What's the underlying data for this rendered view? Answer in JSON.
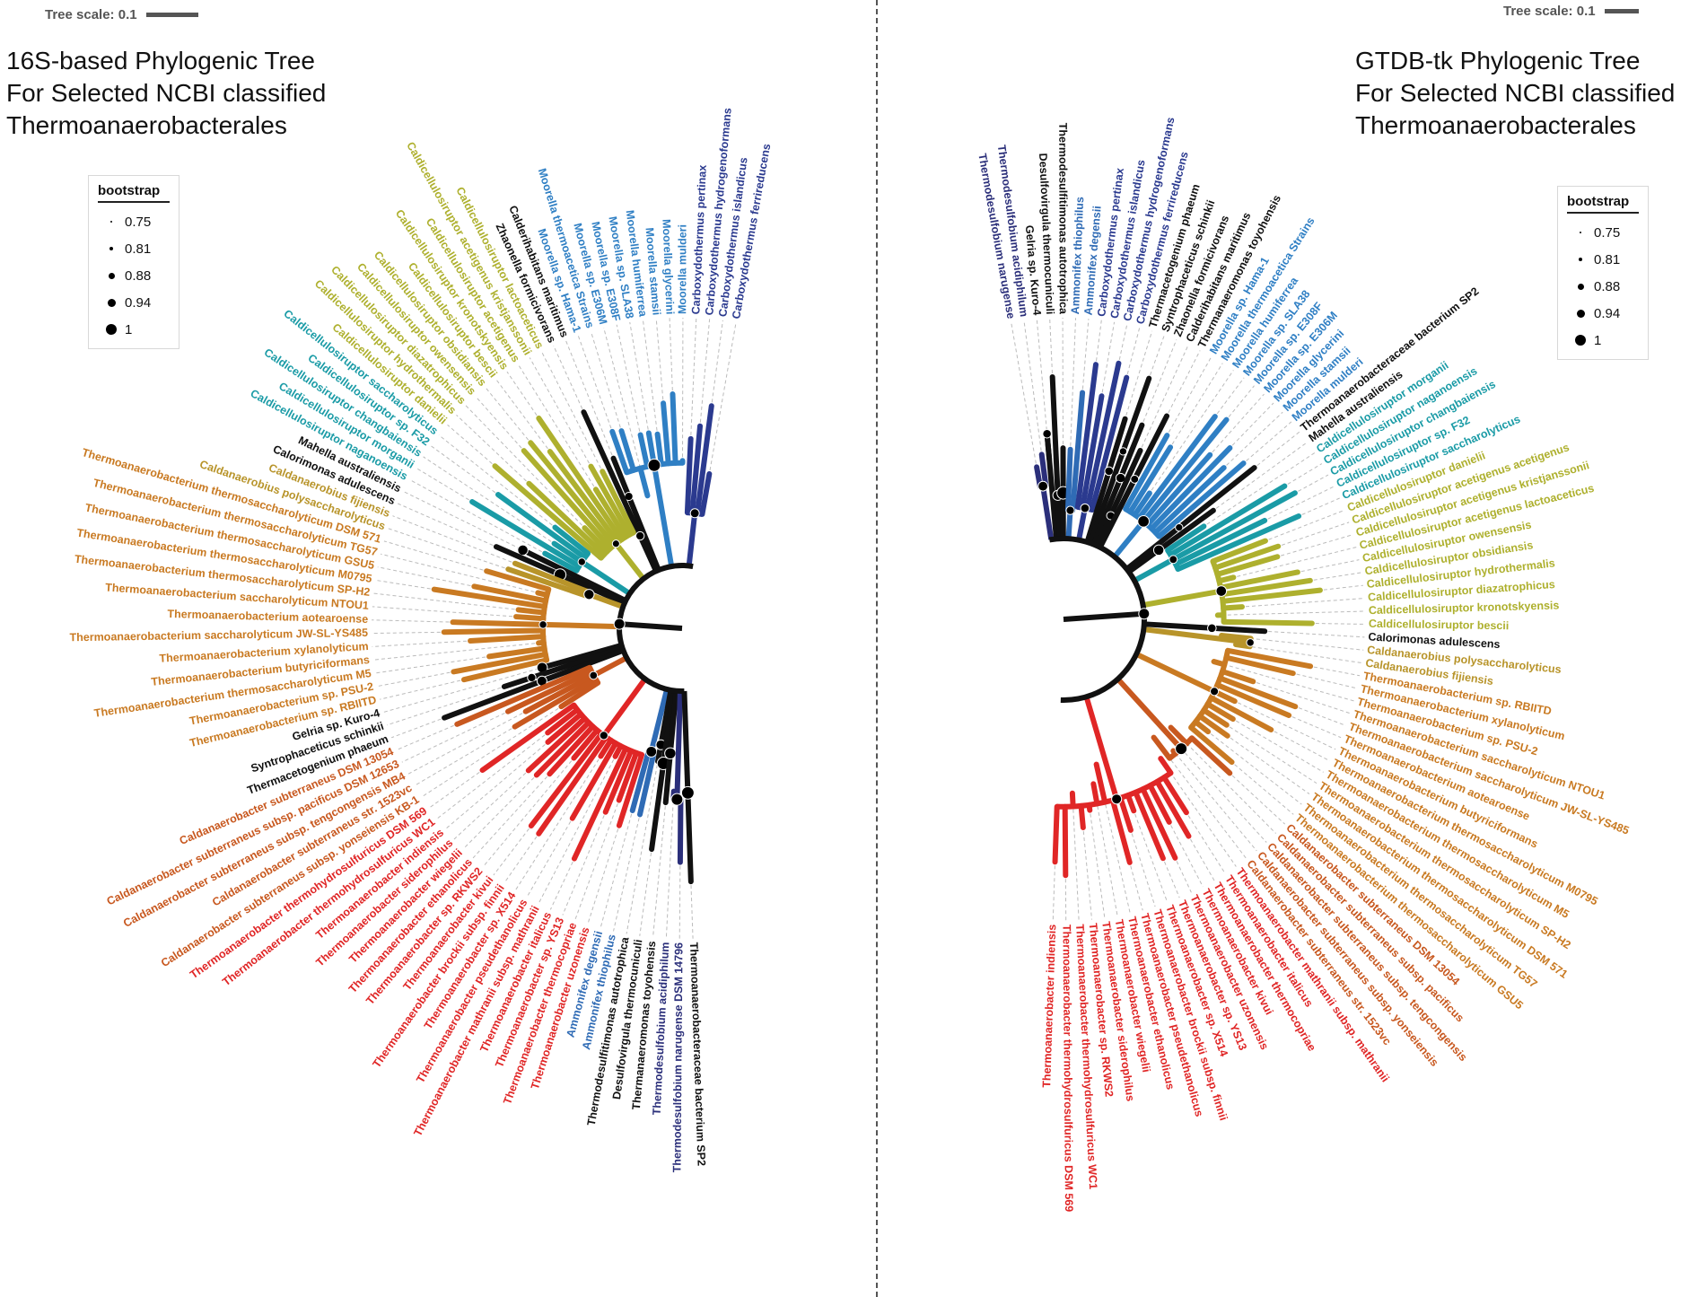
{
  "left": {
    "title_lines": [
      "16S-based Phylogenic Tree",
      "For Selected NCBI classified",
      "Thermoanaerobacterales"
    ],
    "tree_scale_label": "Tree scale: 0.1",
    "legend": {
      "title": "bootstrap",
      "values": [
        "0.75",
        "0.81",
        "0.88",
        "0.94",
        "1"
      ]
    },
    "leaves": [
      {
        "name": "Carboxydothermus ferrireducens",
        "color": "#2b3a8f"
      },
      {
        "name": "Carboxydothermus islandicus",
        "color": "#2b3a8f"
      },
      {
        "name": "Carboxydothermus hydrogenoformans",
        "color": "#2b3a8f"
      },
      {
        "name": "Carboxydothermus pertinax",
        "color": "#2b3a8f"
      },
      {
        "name": "Moorella mulderi",
        "color": "#2f7fc4"
      },
      {
        "name": "Moorella glycerini",
        "color": "#2f7fc4"
      },
      {
        "name": "Moorella stamsii",
        "color": "#2f7fc4"
      },
      {
        "name": "Moorella humiferrea",
        "color": "#2f7fc4"
      },
      {
        "name": "Moorella sp. SLA38",
        "color": "#2f7fc4"
      },
      {
        "name": "Moorella sp. E308F",
        "color": "#2f7fc4"
      },
      {
        "name": "Moorella sp. E306M",
        "color": "#2f7fc4"
      },
      {
        "name": "Moorella thermoacetica Strains",
        "color": "#2f7fc4"
      },
      {
        "name": "Moorella sp. Hama-1",
        "color": "#2f7fc4"
      },
      {
        "name": "Calderihabitans maritimus",
        "color": "#111111"
      },
      {
        "name": "Zhaonella formicivorans",
        "color": "#111111"
      },
      {
        "name": "Caldicellulosiruptor lactoaceticus",
        "color": "#aeb02e"
      },
      {
        "name": "Caldicellulosiruptor acetigenus kristjanssonii",
        "color": "#aeb02e"
      },
      {
        "name": "Caldicellulosiruptor acetigenus",
        "color": "#aeb02e"
      },
      {
        "name": "Caldicellulosiruptor kronotskyensis",
        "color": "#aeb02e"
      },
      {
        "name": "Caldicellulosiruptor bescii",
        "color": "#aeb02e"
      },
      {
        "name": "Caldicellulosiruptor obsidiansis",
        "color": "#aeb02e"
      },
      {
        "name": "Caldicellulosiruptor owensensis",
        "color": "#aeb02e"
      },
      {
        "name": "Caldicellulosiruptor diazatrophicus",
        "color": "#aeb02e"
      },
      {
        "name": "Caldicellulosiruptor hydrothermalis",
        "color": "#aeb02e"
      },
      {
        "name": "Caldicellulosiruptor danielii",
        "color": "#aeb02e"
      },
      {
        "name": "Caldicellulosiruptor saccharolyticus",
        "color": "#1a9ba6"
      },
      {
        "name": "Caldicellulosiruptor sp. F32",
        "color": "#1a9ba6"
      },
      {
        "name": "Caldicellulosiruptor changbaiensis",
        "color": "#1a9ba6"
      },
      {
        "name": "Caldicellulosiruptor morganii",
        "color": "#1a9ba6"
      },
      {
        "name": "Caldicellulosiruptor naganoensis",
        "color": "#1a9ba6"
      },
      {
        "name": "Mahella australiensis",
        "color": "#111111"
      },
      {
        "name": "Calorimonas adulescens",
        "color": "#111111"
      },
      {
        "name": "Caldanaerobius fijiensis",
        "color": "#b8942a"
      },
      {
        "name": "Caldanaerobius polysaccharolyticus",
        "color": "#b8942a"
      },
      {
        "name": "Thermoanaerobacterium thermosaccharolyticum DSM 571",
        "color": "#c97a22"
      },
      {
        "name": "Thermoanaerobacterium thermosaccharolyticum TG57",
        "color": "#c97a22"
      },
      {
        "name": "Thermoanaerobacterium thermosaccharolyticum GSU5",
        "color": "#c97a22"
      },
      {
        "name": "Thermoanaerobacterium thermosaccharolyticum M0795",
        "color": "#c97a22"
      },
      {
        "name": "Thermoanaerobacterium thermosaccharolyticum SP-H2",
        "color": "#c97a22"
      },
      {
        "name": "Thermoanaerobacterium saccharolyticum NTOU1",
        "color": "#c97a22"
      },
      {
        "name": "Thermoanaerobacterium aotearoense",
        "color": "#c97a22"
      },
      {
        "name": "Thermoanaerobacterium saccharolyticum JW-SL-YS485",
        "color": "#c97a22"
      },
      {
        "name": "Thermoanaerobacterium xylanolyticum",
        "color": "#c97a22"
      },
      {
        "name": "Thermoanaerobacterium butyriciformans",
        "color": "#c97a22"
      },
      {
        "name": "Thermoanaerobacterium thermosaccharolyticum M5",
        "color": "#c97a22"
      },
      {
        "name": "Thermoanaerobacterium sp. PSU-2",
        "color": "#c97a22"
      },
      {
        "name": "Thermoanaerobacterium sp. RBIITD",
        "color": "#c97a22"
      },
      {
        "name": "Gelria sp. Kuro-4",
        "color": "#111111"
      },
      {
        "name": "Syntrophaceticus schinkii",
        "color": "#111111"
      },
      {
        "name": "Thermacetogenium phaeum",
        "color": "#111111"
      },
      {
        "name": "Caldanaerobacter subterraneus DSM 13054",
        "color": "#c8581f"
      },
      {
        "name": "Caldanaerobacter subterraneus subsp. pacificus DSM 12653",
        "color": "#c8581f"
      },
      {
        "name": "Caldanaerobacter subterraneus subsp. tengcongensis MB4",
        "color": "#c8581f"
      },
      {
        "name": "Caldanaerobacter subterraneus str. 1523vc",
        "color": "#c8581f"
      },
      {
        "name": "Caldanaerobacter subterraneus subsp. yonseiensis KB-1",
        "color": "#c8581f"
      },
      {
        "name": "Thermoanaerobacter thermohydrosulfuricus DSM 569",
        "color": "#e02626"
      },
      {
        "name": "Thermoanaerobacter thermohydrosulfuricus WC1",
        "color": "#e02626"
      },
      {
        "name": "Thermoanaerobacter indiensis",
        "color": "#e02626"
      },
      {
        "name": "Thermoanaerobacter siderophilus",
        "color": "#e02626"
      },
      {
        "name": "Thermoanaerobacter wiegelii",
        "color": "#e02626"
      },
      {
        "name": "Thermoanaerobacter ethanolicus",
        "color": "#e02626"
      },
      {
        "name": "Thermoanaerobacter sp. RKWS2",
        "color": "#e02626"
      },
      {
        "name": "Thermoanaerobacter kivui",
        "color": "#e02626"
      },
      {
        "name": "Thermoanaerobacter brockii subsp. finnii",
        "color": "#e02626"
      },
      {
        "name": "Thermoanaerobacter sp. X514",
        "color": "#e02626"
      },
      {
        "name": "Thermoanaerobacter pseudethanolicus",
        "color": "#e02626"
      },
      {
        "name": "Thermoanaerobacter mathranii subsp. mathranii",
        "color": "#e02626"
      },
      {
        "name": "Thermoanaerobacter italicus",
        "color": "#e02626"
      },
      {
        "name": "Thermoanaerobacter sp. YS13",
        "color": "#e02626"
      },
      {
        "name": "Thermoanaerobacter thermocopriae",
        "color": "#e02626"
      },
      {
        "name": "Thermoanaerobacter uzonensis",
        "color": "#e02626"
      },
      {
        "name": "Ammonifex degensii",
        "color": "#2f6bb5"
      },
      {
        "name": "Ammonifex thiophilus",
        "color": "#2f6bb5"
      },
      {
        "name": "Thermodesulfitimonas autotrophica",
        "color": "#111111"
      },
      {
        "name": "Desulfovirgula thermocuniculi",
        "color": "#111111"
      },
      {
        "name": "Thermanaeromonas toyohensis",
        "color": "#111111"
      },
      {
        "name": "Thermodesulfobium acidiphilum",
        "color": "#2b2f7a"
      },
      {
        "name": "Thermodesulfobium narugense DSM 14796",
        "color": "#2b2f7a"
      },
      {
        "name": "Thermoanaerobacteraceae bacterium SP2",
        "color": "#111111"
      }
    ]
  },
  "right": {
    "title_lines": [
      "GTDB-tk Phylogenic Tree",
      "For Selected NCBI classified",
      "Thermoanaerobacterales"
    ],
    "tree_scale_label": "Tree scale: 0.1",
    "legend": {
      "title": "bootstrap",
      "values": [
        "0.75",
        "0.81",
        "0.88",
        "0.94",
        "1"
      ]
    },
    "leaves": [
      {
        "name": "Thermodesulfobium narugense",
        "color": "#2b2f7a"
      },
      {
        "name": "Thermodesulfobium acidiphilum",
        "color": "#2b2f7a"
      },
      {
        "name": "Gelria sp. Kuro-4",
        "color": "#111111"
      },
      {
        "name": "Desulfovirgula thermocuniculi",
        "color": "#111111"
      },
      {
        "name": "Thermodesulfitimonas autotrophica",
        "color": "#111111"
      },
      {
        "name": "Ammonifex thiophilus",
        "color": "#2f6bb5"
      },
      {
        "name": "Ammonifex degensii",
        "color": "#2f6bb5"
      },
      {
        "name": "Carboxydothermus pertinax",
        "color": "#2b3a8f"
      },
      {
        "name": "Carboxydothermus islandicus",
        "color": "#2b3a8f"
      },
      {
        "name": "Carboxydothermus hydrogenoformans",
        "color": "#2b3a8f"
      },
      {
        "name": "Carboxydothermus ferrireducens",
        "color": "#2b3a8f"
      },
      {
        "name": "Thermacetogenium phaeum",
        "color": "#111111"
      },
      {
        "name": "Syntrophaceticus schinkii",
        "color": "#111111"
      },
      {
        "name": "Zhaonella formicivorans",
        "color": "#111111"
      },
      {
        "name": "Calderihabitans maritimus",
        "color": "#111111"
      },
      {
        "name": "Thermanaeromonas toyohensis",
        "color": "#111111"
      },
      {
        "name": "Moorella sp. Hama-1",
        "color": "#2f7fc4"
      },
      {
        "name": "Moorella thermoacetica Strains",
        "color": "#2f7fc4"
      },
      {
        "name": "Moorella humiferrea",
        "color": "#2f7fc4"
      },
      {
        "name": "Moorella sp. SLA38",
        "color": "#2f7fc4"
      },
      {
        "name": "Moorella sp. E308F",
        "color": "#2f7fc4"
      },
      {
        "name": "Moorella sp. E306M",
        "color": "#2f7fc4"
      },
      {
        "name": "Moorella glycerini",
        "color": "#2f7fc4"
      },
      {
        "name": "Moorella stamsii",
        "color": "#2f7fc4"
      },
      {
        "name": "Moorella mulderi",
        "color": "#2f7fc4"
      },
      {
        "name": "Thermoanaerobacteraceae bacterium SP2",
        "color": "#111111"
      },
      {
        "name": "Mahella australiensis",
        "color": "#111111"
      },
      {
        "name": "Caldicellulosiruptor morganii",
        "color": "#1a9ba6"
      },
      {
        "name": "Caldicellulosiruptor naganoensis",
        "color": "#1a9ba6"
      },
      {
        "name": "Caldicellulosiruptor changbaiensis",
        "color": "#1a9ba6"
      },
      {
        "name": "Caldicellulosiruptor sp. F32",
        "color": "#1a9ba6"
      },
      {
        "name": "Caldicellulosiruptor saccharolyticus",
        "color": "#1a9ba6"
      },
      {
        "name": "Caldicellulosiruptor danielii",
        "color": "#aeb02e"
      },
      {
        "name": "Caldicellulosiruptor acetigenus acetigenus",
        "color": "#aeb02e"
      },
      {
        "name": "Caldicellulosiruptor acetigenus kristjanssonii",
        "color": "#aeb02e"
      },
      {
        "name": "Caldicellulosiruptor acetigenus lactoaceticus",
        "color": "#aeb02e"
      },
      {
        "name": "Caldicellulosiruptor owensensis",
        "color": "#aeb02e"
      },
      {
        "name": "Caldicellulosiruptor obsidiansis",
        "color": "#aeb02e"
      },
      {
        "name": "Caldicellulosiruptor hydrothermalis",
        "color": "#aeb02e"
      },
      {
        "name": "Caldicellulosiruptor diazatrophicus",
        "color": "#aeb02e"
      },
      {
        "name": "Caldicellulosiruptor kronotskyensis",
        "color": "#aeb02e"
      },
      {
        "name": "Caldicellulosiruptor bescii",
        "color": "#aeb02e"
      },
      {
        "name": "Calorimonas adulescens",
        "color": "#111111"
      },
      {
        "name": "Caldanaerobius polysaccharolyticus",
        "color": "#b8942a"
      },
      {
        "name": "Caldanaerobius fijiensis",
        "color": "#b8942a"
      },
      {
        "name": "Thermoanaerobacterium sp. RBIITD",
        "color": "#c97a22"
      },
      {
        "name": "Thermoanaerobacterium xylanolyticum",
        "color": "#c97a22"
      },
      {
        "name": "Thermoanaerobacterium sp. PSU-2",
        "color": "#c97a22"
      },
      {
        "name": "Thermoanaerobacterium saccharolyticum NTOU1",
        "color": "#c97a22"
      },
      {
        "name": "Thermoanaerobacterium saccharolyticum JW-SL-YS485",
        "color": "#c97a22"
      },
      {
        "name": "Thermoanaerobacterium aotearoense",
        "color": "#c97a22"
      },
      {
        "name": "Thermoanaerobacterium butyriciformans",
        "color": "#c97a22"
      },
      {
        "name": "Thermoanaerobacterium thermosaccharolyticum M0795",
        "color": "#c97a22"
      },
      {
        "name": "Thermoanaerobacterium thermosaccharolyticum M5",
        "color": "#c97a22"
      },
      {
        "name": "Thermoanaerobacterium thermosaccharolyticum SP-H2",
        "color": "#c97a22"
      },
      {
        "name": "Thermoanaerobacterium thermosaccharolyticum DSM 571",
        "color": "#c97a22"
      },
      {
        "name": "Thermoanaerobacterium thermosaccharolyticum TG57",
        "color": "#c97a22"
      },
      {
        "name": "Thermoanaerobacterium thermosaccharolyticum GSU5",
        "color": "#c97a22"
      },
      {
        "name": "Caldanaerobacter subterraneus DSM 13054",
        "color": "#c8581f"
      },
      {
        "name": "Caldanaerobacter subterraneus subsp. pacificus",
        "color": "#c8581f"
      },
      {
        "name": "Caldanaerobacter subterraneus subsp. tengcongensis",
        "color": "#c8581f"
      },
      {
        "name": "Caldanaerobacter subterraneus subsp. yonseiensis",
        "color": "#c8581f"
      },
      {
        "name": "Caldanaerobacter subterraneus str. 1523vc",
        "color": "#c8581f"
      },
      {
        "name": "Thermoanaerobacter mathranii subsp. mathranii",
        "color": "#e02626"
      },
      {
        "name": "Thermoanaerobacter italicus",
        "color": "#e02626"
      },
      {
        "name": "Thermoanaerobacter thermocopriae",
        "color": "#e02626"
      },
      {
        "name": "Thermoanaerobacter kivui",
        "color": "#e02626"
      },
      {
        "name": "Thermoanaerobacter uzonensis",
        "color": "#e02626"
      },
      {
        "name": "Thermoanaerobacter sp. YS13",
        "color": "#e02626"
      },
      {
        "name": "Thermoanaerobacter sp. X514",
        "color": "#e02626"
      },
      {
        "name": "Thermoanaerobacter brockii subsp. finnii",
        "color": "#e02626"
      },
      {
        "name": "Thermoanaerobacter pseudethanolicus",
        "color": "#e02626"
      },
      {
        "name": "Thermoanaerobacter ethanolicus",
        "color": "#e02626"
      },
      {
        "name": "Thermoanaerobacter wiegelii",
        "color": "#e02626"
      },
      {
        "name": "Thermoanaerobacter siderophilus",
        "color": "#e02626"
      },
      {
        "name": "Thermoanaerobacter sp. RKWS2",
        "color": "#e02626"
      },
      {
        "name": "Thermoanaerobacter thermohydrosulfuricus WC1",
        "color": "#e02626"
      },
      {
        "name": "Thermoanaerobacter thermohydrosulfuricus DSM 569",
        "color": "#e02626"
      },
      {
        "name": "Thermoanaerobacter indiensis",
        "color": "#e02626"
      }
    ]
  }
}
